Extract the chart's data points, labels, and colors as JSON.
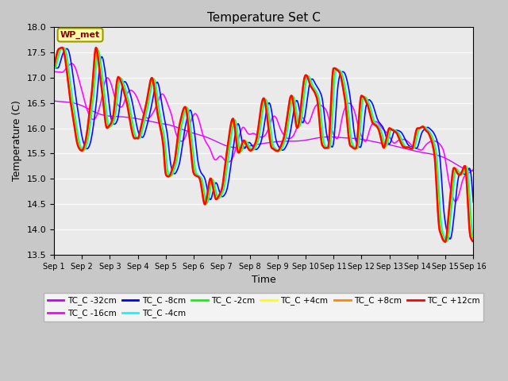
{
  "title": "Temperature Set C",
  "xlabel": "Time",
  "ylabel": "Temperature (C)",
  "ylim": [
    13.5,
    18.0
  ],
  "yticks": [
    13.5,
    14.0,
    14.5,
    15.0,
    15.5,
    16.0,
    16.5,
    17.0,
    17.5,
    18.0
  ],
  "x_labels": [
    "Sep 1",
    "Sep 2",
    "Sep 3",
    "Sep 4",
    "Sep 5",
    "Sep 6",
    "Sep 7",
    "Sep 8",
    "Sep 9",
    "Sep 10",
    "Sep 11",
    "Sep 12",
    "Sep 13",
    "Sep 14",
    "Sep 15",
    "Sep 16"
  ],
  "series": {
    "TC_C -32cm": {
      "color": "#cc00ff",
      "lw": 1.0,
      "damp": 0.08,
      "lag": 0.5,
      "base_off": 0.0
    },
    "TC_C -16cm": {
      "color": "#ff00ff",
      "lw": 1.2,
      "damp": 0.25,
      "lag": 0.35,
      "base_off": 0.0
    },
    "TC_C -8cm": {
      "color": "#0000ff",
      "lw": 1.2,
      "damp": 0.55,
      "lag": 0.2,
      "base_off": 0.0
    },
    "TC_C -4cm": {
      "color": "#00ffff",
      "lw": 1.2,
      "damp": 0.72,
      "lag": 0.1,
      "base_off": 0.0
    },
    "TC_C -2cm": {
      "color": "#00ff00",
      "lw": 1.2,
      "damp": 0.85,
      "lag": 0.05,
      "base_off": 0.0
    },
    "TC_C +4cm": {
      "color": "#ffff00",
      "lw": 1.2,
      "damp": 1.0,
      "lag": 0.02,
      "base_off": 0.0
    },
    "TC_C +8cm": {
      "color": "#ff8800",
      "lw": 1.5,
      "damp": 1.05,
      "lag": 0.01,
      "base_off": 0.0
    },
    "TC_C +12cm": {
      "color": "#ff0000",
      "lw": 1.8,
      "damp": 1.18,
      "lag": 0.0,
      "base_off": 0.0
    }
  },
  "legend_order": [
    "TC_C -32cm",
    "TC_C -16cm",
    "TC_C -8cm",
    "TC_C -4cm",
    "TC_C -2cm",
    "TC_C +4cm",
    "TC_C +8cm",
    "TC_C +12cm"
  ],
  "wp_met_label": "WP_met",
  "fig_bg": "#c8c8c8",
  "plot_bg": "#eaeaea"
}
